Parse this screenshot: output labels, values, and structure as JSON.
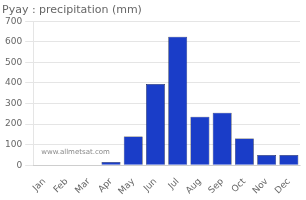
{
  "chart_data": {
    "type": "bar",
    "title": "Pyay : precipitation (mm)",
    "categories": [
      "Jan",
      "Feb",
      "Mar",
      "Apr",
      "May",
      "Jun",
      "Jul",
      "Aug",
      "Sep",
      "Oct",
      "Nov",
      "Dec"
    ],
    "values": [
      0,
      0,
      0,
      15,
      140,
      395,
      625,
      235,
      255,
      130,
      50,
      50
    ],
    "color": "#1a3dc8",
    "ylim": [
      0,
      700
    ],
    "yticks": [
      0,
      100,
      200,
      300,
      400,
      500,
      600,
      700
    ],
    "grid": true,
    "annotation": "www.allmetsat.com"
  }
}
